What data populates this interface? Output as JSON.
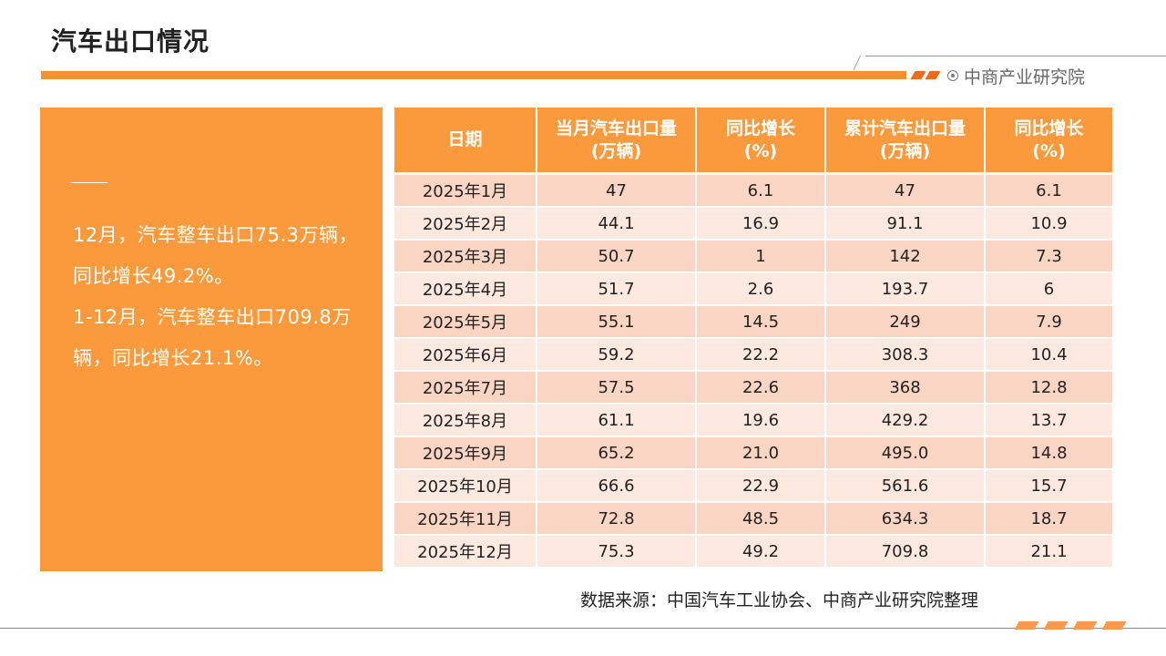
{
  "page": {
    "title": "汽车出口情况",
    "brand": "中商产业研究院",
    "brand_icon": "target-circle-icon",
    "accent_color": "#f5922f"
  },
  "summary": {
    "lines": [
      "12月，汽车整车出口75.3万辆，同比增长49.2%。",
      "1-12月，汽车整车出口709.8万辆，同比增长21.1%。"
    ]
  },
  "table": {
    "headers": [
      "日期",
      "当月汽车出口量\n(万辆)",
      "同比增长\n(%)",
      "累计汽车出口量\n(万辆)",
      "同比增长\n(%)"
    ],
    "rows": [
      [
        "2025年1月",
        "47",
        "6.1",
        "47",
        "6.1"
      ],
      [
        "2025年2月",
        "44.1",
        "16.9",
        "91.1",
        "10.9"
      ],
      [
        "2025年3月",
        "50.7",
        "1",
        "142",
        "7.3"
      ],
      [
        "2025年4月",
        "51.7",
        "2.6",
        "193.7",
        "6"
      ],
      [
        "2025年5月",
        "55.1",
        "14.5",
        "249",
        "7.9"
      ],
      [
        "2025年6月",
        "59.2",
        "22.2",
        "308.3",
        "10.4"
      ],
      [
        "2025年7月",
        "57.5",
        "22.6",
        "368",
        "12.8"
      ],
      [
        "2025年8月",
        "61.1",
        "19.6",
        "429.2",
        "13.7"
      ],
      [
        "2025年9月",
        "65.2",
        "21.0",
        "495.0",
        "14.8"
      ],
      [
        "2025年10月",
        "66.6",
        "22.9",
        "561.6",
        "15.7"
      ],
      [
        "2025年11月",
        "72.8",
        "48.5",
        "634.3",
        "18.7"
      ],
      [
        "2025年12月",
        "75.3",
        "49.2",
        "709.8",
        "21.1"
      ]
    ]
  },
  "source": "数据来源：中国汽车工业协会、中商产业研究院整理"
}
